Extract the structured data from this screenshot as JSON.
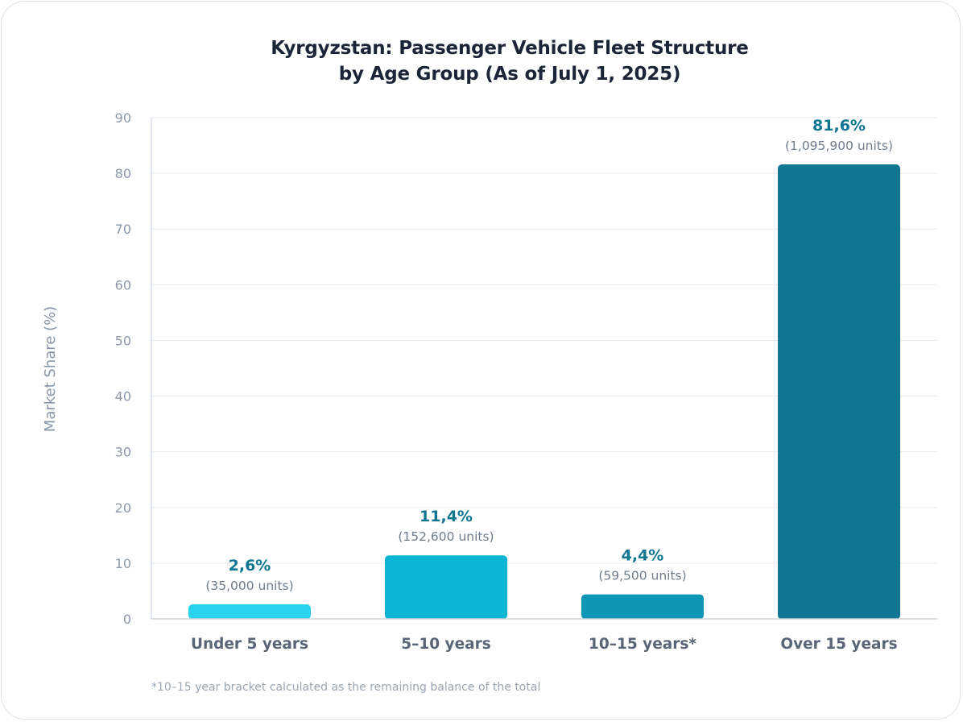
{
  "chart_data": {
    "type": "bar",
    "title_lines": [
      "Kyrgyzstan: Passenger Vehicle Fleet Structure",
      "by Age Group (As of July 1, 2025)"
    ],
    "ylabel": "Market Share (%)",
    "xlabel": "",
    "ylim": [
      0,
      90
    ],
    "yticks": [
      0,
      10,
      20,
      30,
      40,
      50,
      60,
      70,
      80,
      90
    ],
    "grid": true,
    "categories": [
      "Under 5 years",
      "5–10 years",
      "10–15 years*",
      "Over 15 years"
    ],
    "values": [
      2.6,
      11.4,
      4.4,
      81.6
    ],
    "value_labels": [
      "2,6%",
      "11,4%",
      "4,4%",
      "81,6%"
    ],
    "unit_labels": [
      "(35,000 units)",
      "(152,600 units)",
      "(59,500 units)",
      "(1,095,900 units)"
    ],
    "bar_colors": [
      "#27d3ec",
      "#0bb5d3",
      "#0e96b6",
      "#117692"
    ],
    "value_label_color": "#117692",
    "footnote": "*10–15 year bracket calculated as the remaining balance of the total"
  }
}
